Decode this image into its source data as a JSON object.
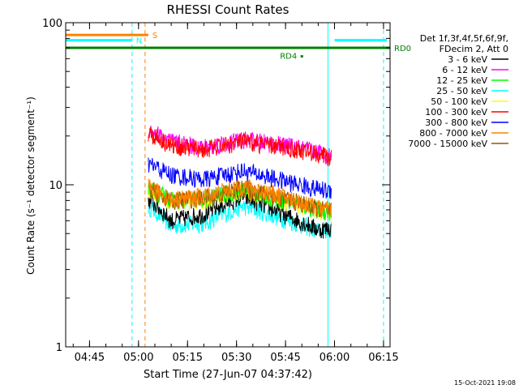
{
  "chart_data": {
    "type": "line",
    "title": "RHESSI Count Rates",
    "xlabel": "Start Time (27-Jun-07 04:37:42)",
    "ylabel": "Count Rate (s⁻¹ detector segment⁻¹)",
    "y_scale": "log",
    "ylim": [
      1,
      100
    ],
    "xlim": [
      "04:37:42",
      "06:17:00"
    ],
    "x_ticks": [
      "04:45",
      "05:00",
      "05:15",
      "05:30",
      "05:45",
      "06:00",
      "06:15"
    ],
    "y_ticks": [
      "1",
      "10",
      "100"
    ],
    "grid": false,
    "legend_header": [
      "Det 1f,3f,4f,5f,6f,9f,",
      "FDecim 2, Att 0"
    ],
    "legend_position": "right",
    "footer_date": "15-Oct-2021 19:08",
    "series": [
      {
        "name": "3 - 6 keV",
        "color": "#000000",
        "x": [
          "05:03",
          "05:10",
          "05:20",
          "05:32",
          "05:45",
          "05:55",
          "05:59"
        ],
        "y": [
          8.2,
          6.0,
          6.6,
          8.5,
          6.5,
          5.3,
          5.4
        ]
      },
      {
        "name": "6 - 12 keV",
        "color": "#ff00ff",
        "x": [
          "05:03",
          "05:10",
          "05:20",
          "05:32",
          "05:45",
          "05:55",
          "05:59"
        ],
        "y": [
          22,
          18.5,
          17,
          19,
          17.5,
          16,
          15
        ]
      },
      {
        "name": "12 - 25 keV",
        "color": "#00ff00",
        "x": [
          "05:03",
          "05:10",
          "05:20",
          "05:32",
          "05:45",
          "05:55",
          "05:59"
        ],
        "y": [
          9.6,
          8.0,
          8.2,
          9.3,
          8.0,
          7.0,
          6.8
        ]
      },
      {
        "name": "25 - 50 keV",
        "color": "#00ffff",
        "x": [
          "05:03",
          "05:10",
          "05:20",
          "05:32",
          "05:45",
          "05:55",
          "05:59"
        ],
        "y": [
          7.4,
          5.6,
          5.8,
          7.4,
          6.1,
          5.2,
          5.3
        ]
      },
      {
        "name": "50 - 100 keV",
        "color": "#ffff00",
        "x": [
          "05:03",
          "05:10",
          "05:20",
          "05:32",
          "05:45",
          "05:55",
          "05:59"
        ],
        "y": [
          9.4,
          7.9,
          8.0,
          9.2,
          7.9,
          7.0,
          6.8
        ]
      },
      {
        "name": "100 - 300 keV",
        "color": "#ff0000",
        "x": [
          "05:03",
          "05:10",
          "05:20",
          "05:32",
          "05:45",
          "05:55",
          "05:59"
        ],
        "y": [
          21,
          17.5,
          16.5,
          18.5,
          17,
          15.5,
          14.5
        ]
      },
      {
        "name": "300 - 800 keV",
        "color": "#0000ff",
        "x": [
          "05:03",
          "05:10",
          "05:20",
          "05:32",
          "05:45",
          "05:55",
          "05:59"
        ],
        "y": [
          13.5,
          11.5,
          10.8,
          12.2,
          10.5,
          9.4,
          9.2
        ]
      },
      {
        "name": "800 - 7000 keV",
        "color": "#ff8000",
        "x": [
          "05:03",
          "05:10",
          "05:20",
          "05:32",
          "05:45",
          "05:55",
          "05:59"
        ],
        "y": [
          9.7,
          8.1,
          8.5,
          9.8,
          8.4,
          7.2,
          7.0
        ]
      },
      {
        "name": "7000 - 15000 keV",
        "color": "#a05000",
        "x": [
          "05:03",
          "05:10",
          "05:20",
          "05:32",
          "05:45",
          "05:55",
          "05:59"
        ],
        "y": [
          9.5,
          8.0,
          8.3,
          9.5,
          8.2,
          7.1,
          6.9
        ]
      }
    ],
    "flags": [
      {
        "label": "S",
        "color": "#ff8000",
        "x_start": "04:37:42",
        "x_end": "05:03",
        "y": 84
      },
      {
        "label": "N",
        "color": "#00ffff",
        "x_start": "04:37:42",
        "x_end": "04:58",
        "y": 78
      },
      {
        "label": "",
        "color": "#00ffff",
        "x_start": "06:00",
        "x_end": "06:16",
        "y": 78
      },
      {
        "label": "RD0",
        "color": "#008000",
        "x_start": "04:37:42",
        "x_end": "06:17:00",
        "y": 70
      },
      {
        "label": "RD4",
        "color": "#008000",
        "x_start": "05:50",
        "x_end": "05:50",
        "y": 62
      }
    ],
    "vertical_markers": [
      {
        "x": "04:37:42",
        "color": "#00ffff",
        "style": "solid"
      },
      {
        "x": "04:58",
        "color": "#00ffff",
        "style": "dashed"
      },
      {
        "x": "05:02",
        "color": "#ff8000",
        "style": "dashed"
      },
      {
        "x": "05:58",
        "color": "#00ffff",
        "style": "solid"
      },
      {
        "x": "06:15",
        "color": "#00ffff",
        "style": "dashed"
      }
    ]
  }
}
